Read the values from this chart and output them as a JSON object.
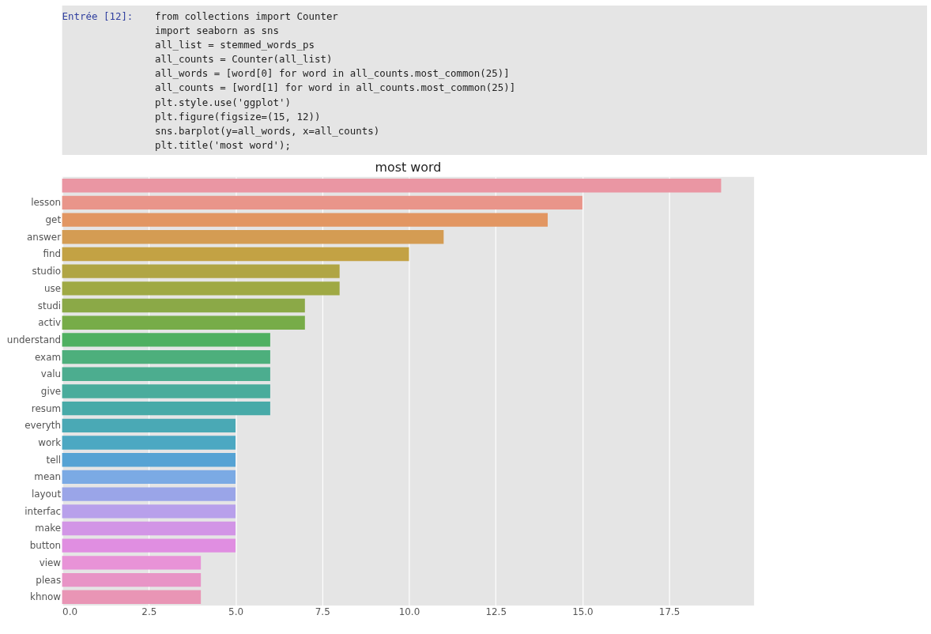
{
  "chart_data": {
    "type": "bar",
    "orientation": "horizontal",
    "title": "most word",
    "categories": [
      null,
      "lesson",
      "get",
      "answer",
      "find",
      "studio",
      "use",
      "studi",
      "activ",
      "understand",
      "exam",
      "valu",
      "give",
      "resum",
      "everyth",
      "work",
      "tell",
      "mean",
      "layout",
      "interfac",
      "make",
      "button",
      "view",
      "pleas",
      "khnow"
    ],
    "values": [
      19,
      15,
      14,
      11,
      10,
      8,
      8,
      7,
      7,
      6,
      6,
      6,
      6,
      6,
      5,
      5,
      5,
      5,
      5,
      5,
      5,
      5,
      4,
      4,
      4
    ],
    "colors": [
      "#ea96a3",
      "#e9958a",
      "#e29662",
      "#d49c53",
      "#c3a244",
      "#b0a544",
      "#9fa944",
      "#8ba947",
      "#77ac48",
      "#4fb061",
      "#4daf7c",
      "#4cad8f",
      "#4aac9c",
      "#48aaa8",
      "#4aa9b5",
      "#4ca8c2",
      "#56a3d4",
      "#7baae4",
      "#9aa5e8",
      "#b8a0eb",
      "#d295e6",
      "#e08ee1",
      "#e893d7",
      "#e894c6",
      "#e995b5"
    ],
    "xlim": [
      0,
      19.95
    ],
    "xticks": [
      {
        "value": 0,
        "label": "0.0"
      },
      {
        "value": 2.5,
        "label": "2.5"
      },
      {
        "value": 5,
        "label": "5.0"
      },
      {
        "value": 7.5,
        "label": "7.5"
      },
      {
        "value": 10,
        "label": "10.0"
      },
      {
        "value": 12.5,
        "label": "12.5"
      },
      {
        "value": 15,
        "label": "15.0"
      },
      {
        "value": 17.5,
        "label": "17.5"
      }
    ],
    "grid": "x",
    "annotations": [
      "Entrée [12]:",
      "from collections import Counter",
      "import seaborn as sns",
      "all_list = stemmed_words_ps",
      "all_counts = Counter(all_list)",
      "all_words = [word[0] for word in all_counts.most_common(25)]",
      "all_counts = [word[1] for word in all_counts.most_common(25)]",
      "plt.style.use('ggplot')",
      "plt.figure(figsize=(15, 12))",
      "sns.barplot(y=all_words, x=all_counts)",
      "plt.title('most word');"
    ]
  }
}
